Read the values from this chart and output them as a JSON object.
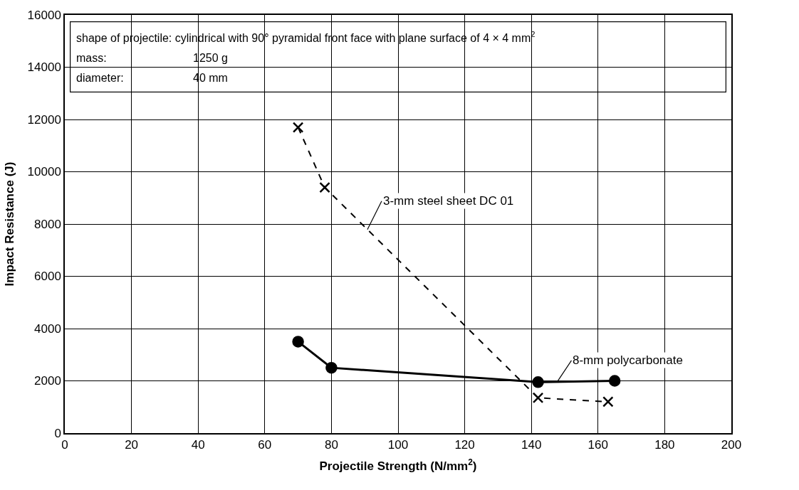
{
  "chart_data": {
    "type": "line",
    "xlabel": "Projectile Strength (N/mm$^{2}$)",
    "ylabel": "Impact Resistance (J)",
    "series": [
      {
        "name": "8-mm polycarbonate",
        "color": "#000000",
        "marker": "circle",
        "line_style": "solid",
        "x": [
          70,
          80,
          142,
          165
        ],
        "values": [
          3500,
          2500,
          1950,
          2000
        ]
      },
      {
        "name": "3-mm steel sheet DC 01",
        "color": "#000000",
        "marker": "cross",
        "line_style": "dashed",
        "x": [
          70,
          78,
          142,
          163
        ],
        "values": [
          11700,
          9400,
          1350,
          1200
        ]
      }
    ],
    "xlim": [
      0,
      200
    ],
    "xticks": [
      0,
      20,
      40,
      60,
      80,
      100,
      120,
      140,
      160,
      180,
      200
    ],
    "ylim": [
      0,
      16000
    ],
    "yticks": [
      0,
      2000,
      4000,
      6000,
      8000,
      10000,
      12000,
      14000,
      16000
    ],
    "grid": true,
    "legend": false,
    "annotations": [
      "shape of projectile: cylindrical with 90° pyramidal front face with plane surface of 4 × 4 mm$^{2}$",
      "mass:",
      "1250 g",
      "diameter:",
      "40 mm"
    ]
  }
}
